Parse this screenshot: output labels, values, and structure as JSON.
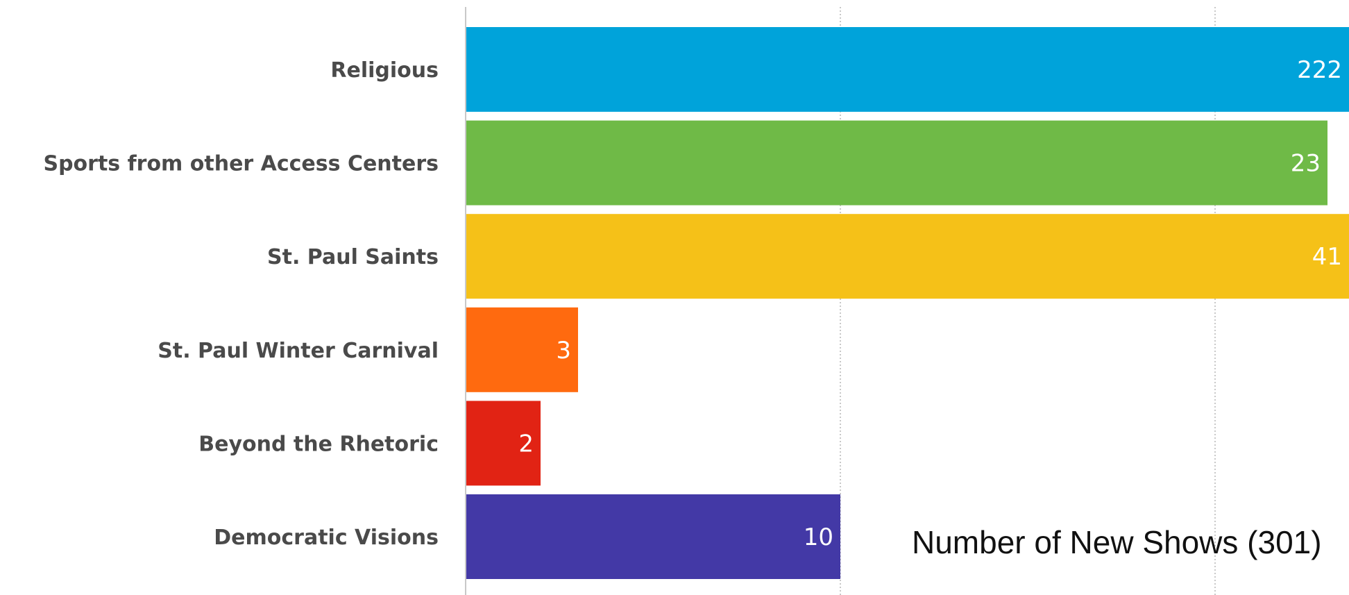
{
  "chart_data": {
    "type": "bar",
    "orientation": "horizontal",
    "categories": [
      "Religious",
      "Sports from other Access Centers",
      "St. Paul Saints",
      "St. Paul Winter Carnival",
      "Beyond the Rhetoric",
      "Democratic Visions"
    ],
    "values": [
      222,
      23,
      41,
      3,
      2,
      10
    ],
    "value_labels": [
      "222",
      "23",
      "41",
      "3",
      "2",
      "10"
    ],
    "colors": [
      "#00A3DA",
      "#6FBA47",
      "#F5C118",
      "#FF6A0F",
      "#E12314",
      "#4339A6"
    ],
    "caption": "Number of New Shows (301)",
    "grid": true,
    "axis_max_visible": 36
  }
}
